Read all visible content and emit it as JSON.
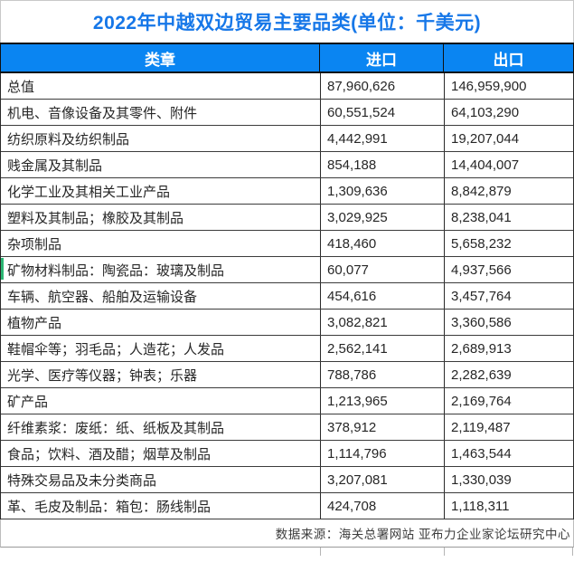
{
  "title": "2022年中越双边贸易主要品类(单位：千美元)",
  "colors": {
    "title-blue": "#1677E8",
    "header-bg": "#0A85F2",
    "header-text": "#FFFFFF",
    "row-text": "#262626",
    "marker-green": "#2BB673"
  },
  "table": {
    "headers": [
      "类章",
      "进口",
      "出口"
    ],
    "rows": [
      {
        "category": "总值",
        "import": "87,960,626",
        "export": "146,959,900"
      },
      {
        "category": "机电、音像设备及其零件、附件",
        "import": "60,551,524",
        "export": "64,103,290"
      },
      {
        "category": "纺织原料及纺织制品",
        "import": "4,442,991",
        "export": "19,207,044"
      },
      {
        "category": "贱金属及其制品",
        "import": "854,188",
        "export": "14,404,007"
      },
      {
        "category": "化学工业及其相关工业产品",
        "import": "1,309,636",
        "export": "8,842,879"
      },
      {
        "category": "塑料及其制品；橡胶及其制品",
        "import": "3,029,925",
        "export": "8,238,041"
      },
      {
        "category": "杂项制品",
        "import": "418,460",
        "export": "5,658,232"
      },
      {
        "category": "矿物材料制品：陶瓷品：玻璃及制品",
        "import": "60,077",
        "export": "4,937,566",
        "marker": true
      },
      {
        "category": "车辆、航空器、船舶及运输设备",
        "import": "454,616",
        "export": "3,457,764"
      },
      {
        "category": "植物产品",
        "import": "3,082,821",
        "export": "3,360,586"
      },
      {
        "category": "鞋帽伞等；羽毛品；人造花；人发品",
        "import": "2,562,141",
        "export": "2,689,913"
      },
      {
        "category": "光学、医疗等仪器；钟表；乐器",
        "import": "788,786",
        "export": "2,282,639"
      },
      {
        "category": "矿产品",
        "import": "1,213,965",
        "export": "2,169,764"
      },
      {
        "category": "纤维素浆：废纸：纸、纸板及其制品",
        "import": "378,912",
        "export": "2,119,487"
      },
      {
        "category": "食品；饮料、酒及醋；烟草及制品",
        "import": "1,114,796",
        "export": "1,463,544"
      },
      {
        "category": "特殊交易品及未分类商品",
        "import": "3,207,081",
        "export": "1,330,039"
      },
      {
        "category": "革、毛皮及制品：箱包：肠线制品",
        "import": "424,708",
        "export": "1,118,311"
      }
    ]
  },
  "footer": "数据来源：海关总署网站 亚布力企业家论坛研究中心",
  "chart_data": {
    "type": "table",
    "title": "2022年中越双边贸易主要品类(单位：千美元)",
    "unit": "千美元",
    "columns": [
      "类章",
      "进口",
      "出口"
    ],
    "categories": [
      "总值",
      "机电、音像设备及其零件、附件",
      "纺织原料及纺织制品",
      "贱金属及其制品",
      "化学工业及其相关工业产品",
      "塑料及其制品；橡胶及其制品",
      "杂项制品",
      "矿物材料制品：陶瓷品：玻璃及制品",
      "车辆、航空器、船舶及运输设备",
      "植物产品",
      "鞋帽伞等；羽毛品；人造花；人发品",
      "光学、医疗等仪器；钟表；乐器",
      "矿产品",
      "纤维素浆：废纸：纸、纸板及其制品",
      "食品；饮料、酒及醋；烟草及制品",
      "特殊交易品及未分类商品",
      "革、毛皮及制品：箱包：肠线制品"
    ],
    "series": [
      {
        "name": "进口",
        "values": [
          87960626,
          60551524,
          4442991,
          854188,
          1309636,
          3029925,
          418460,
          60077,
          454616,
          3082821,
          2562141,
          788786,
          1213965,
          378912,
          1114796,
          3207081,
          424708
        ]
      },
      {
        "name": "出口",
        "values": [
          146959900,
          64103290,
          19207044,
          14404007,
          8842879,
          8238041,
          5658232,
          4937566,
          3457764,
          3360586,
          2689913,
          2282639,
          2169764,
          2119487,
          1463544,
          1330039,
          1118311
        ]
      }
    ],
    "source": "数据来源：海关总署网站 亚布力企业家论坛研究中心"
  }
}
